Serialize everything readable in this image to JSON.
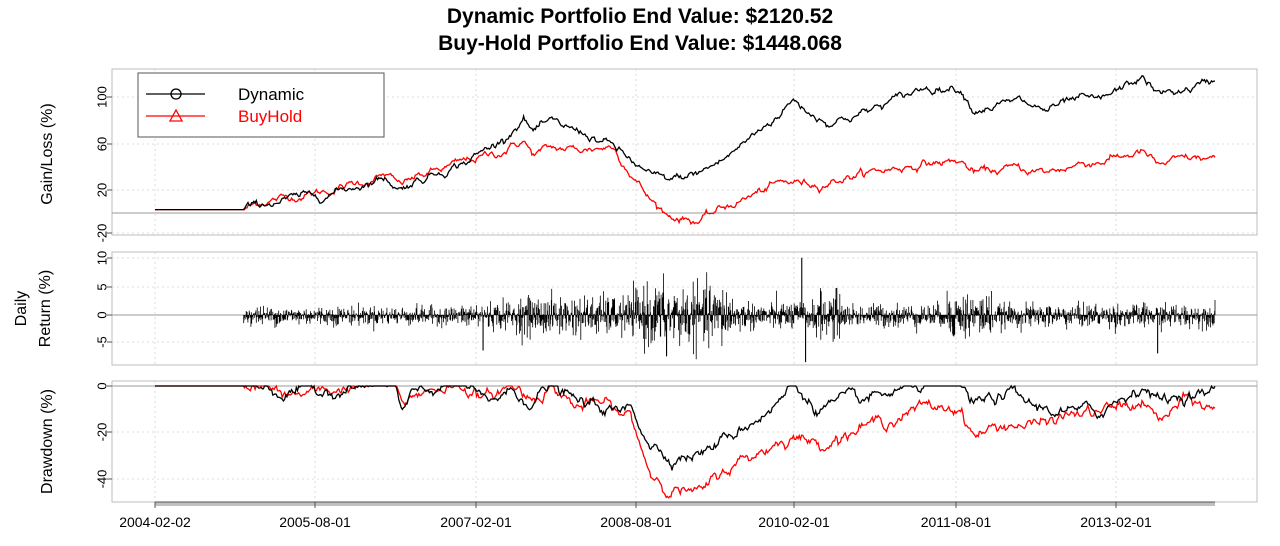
{
  "titles": {
    "line1": "Dynamic Portfolio End Value: $2120.52",
    "line2": "Buy-Hold Portfolio End Value: $1448.068"
  },
  "colors": {
    "dynamic": "#000000",
    "buyhold": "#ff0000",
    "grid": "#d3d3d3",
    "frame": "#bebebe"
  },
  "x_axis": {
    "ticks": [
      "2004-02-02",
      "2005-08-01",
      "2007-02-01",
      "2008-08-01",
      "2010-02-01",
      "2011-08-01",
      "2013-02-01"
    ]
  },
  "chart_data": [
    {
      "type": "line",
      "panel": "gain",
      "ylabel": "Gain/Loss (%)",
      "yticks": [
        "100",
        "60",
        "20",
        "-20"
      ],
      "ylim": [
        -22,
        122
      ],
      "legend": {
        "position": "top-left",
        "entries": [
          "Dynamic",
          "BuyHold"
        ]
      },
      "x": [
        "2004-02-02",
        "2004-12-01",
        "2005-02-01",
        "2005-06-01",
        "2005-10-01",
        "2006-04-01",
        "2006-05-15",
        "2006-07-01",
        "2007-01-01",
        "2007-05-01",
        "2007-07-15",
        "2007-08-15",
        "2007-10-15",
        "2008-02-01",
        "2008-05-15",
        "2008-09-15",
        "2008-11-20",
        "2009-03-09",
        "2009-06-01",
        "2009-12-01",
        "2010-01-20",
        "2010-04-15",
        "2010-06-01",
        "2010-10-01",
        "2011-04-15",
        "2011-08-15",
        "2011-10-01",
        "2012-03-01",
        "2012-06-01",
        "2012-10-01",
        "2012-12-01",
        "2013-05-01",
        "2013-06-20",
        "2013-10-01",
        "2014-01-02"
      ],
      "series": [
        {
          "name": "Dynamic",
          "values": [
            0,
            0,
            5,
            10,
            15,
            28,
            18,
            24,
            42,
            60,
            80,
            68,
            75,
            67,
            55,
            30,
            25,
            32,
            44,
            82,
            95,
            80,
            76,
            85,
            106,
            106,
            87,
            94,
            86,
            96,
            94,
            115,
            100,
            104,
            112
          ]
        },
        {
          "name": "BuyHold",
          "values": [
            0,
            0,
            7,
            12,
            17,
            30,
            21,
            27,
            42,
            50,
            60,
            48,
            53,
            52,
            55,
            10,
            -5,
            -10,
            2,
            22,
            24,
            22,
            25,
            32,
            40,
            42,
            32,
            36,
            32,
            40,
            42,
            50,
            38,
            44,
            44
          ]
        }
      ]
    },
    {
      "type": "line",
      "panel": "daily_return",
      "ylabel_lines": [
        "Daily",
        "Return (%)"
      ],
      "yticks": [
        "10",
        "5",
        "0",
        "-5"
      ],
      "ylim": [
        -8.5,
        11
      ],
      "x_start": "2004-12-01",
      "x_end": "2014-01-02",
      "series": [
        {
          "name": "Dynamic",
          "volatility_profile": [
            {
              "from": "2004-12-01",
              "to": "2007-01-01",
              "sd": 0.8
            },
            {
              "from": "2007-01-01",
              "to": "2007-07-01",
              "sd": 1.2
            },
            {
              "from": "2007-07-01",
              "to": "2008-08-01",
              "sd": 1.7
            },
            {
              "from": "2008-08-01",
              "to": "2009-07-01",
              "sd": 2.6
            },
            {
              "from": "2009-07-01",
              "to": "2010-04-01",
              "sd": 1.2
            },
            {
              "from": "2010-04-01",
              "to": "2010-07-01",
              "sd": 2.0
            },
            {
              "from": "2010-07-01",
              "to": "2011-07-01",
              "sd": 1.0
            },
            {
              "from": "2011-07-01",
              "to": "2011-12-01",
              "sd": 2.0
            },
            {
              "from": "2011-12-01",
              "to": "2014-01-02",
              "sd": 1.0
            }
          ],
          "spikes": [
            {
              "x": "2010-02-20",
              "value": 10
            },
            {
              "x": "2010-03-05",
              "value": -8
            },
            {
              "x": "2007-02-27",
              "value": -6
            },
            {
              "x": "2008-11-15",
              "value": -7
            },
            {
              "x": "2013-06-20",
              "value": -6.5
            }
          ]
        }
      ]
    },
    {
      "type": "line",
      "panel": "drawdown",
      "ylabel": "Drawdown (%)",
      "yticks": [
        "0",
        "-20",
        "-40"
      ],
      "ylim": [
        -51,
        1.5
      ],
      "x": [
        "2004-02-02",
        "2005-02-01",
        "2005-04-15",
        "2005-08-01",
        "2006-01-01",
        "2006-05-01",
        "2006-05-25",
        "2006-07-15",
        "2006-11-01",
        "2007-01-01",
        "2007-03-01",
        "2007-06-01",
        "2007-08-15",
        "2007-10-15",
        "2008-01-15",
        "2008-04-15",
        "2008-06-01",
        "2008-07-15",
        "2008-09-20",
        "2008-11-20",
        "2009-03-09",
        "2009-06-01",
        "2009-12-01",
        "2010-01-20",
        "2010-04-15",
        "2010-07-01",
        "2010-10-01",
        "2011-04-15",
        "2011-08-15",
        "2011-10-01",
        "2012-02-01",
        "2012-05-01",
        "2012-09-01",
        "2012-12-01",
        "2013-05-01",
        "2013-06-25",
        "2013-10-01",
        "2014-01-02"
      ],
      "series": [
        {
          "name": "Dynamic",
          "values": [
            0,
            0,
            -4,
            -3,
            -1,
            0,
            -13,
            -4,
            0,
            -1,
            -8,
            -3,
            -7,
            0,
            -8,
            -10,
            -13,
            -10,
            -25,
            -31,
            -30,
            -24,
            -8,
            0,
            -10,
            -8,
            -7,
            0,
            -1,
            -9,
            -4,
            -10,
            -12,
            -12,
            0,
            -7,
            -4,
            -4
          ]
        },
        {
          "name": "BuyHold",
          "values": [
            0,
            0,
            -5,
            -4,
            0,
            0,
            -10,
            -4,
            0,
            -1,
            -7,
            0,
            -6,
            0,
            -10,
            -8,
            -13,
            -14,
            -38,
            -44,
            -48,
            -37,
            -25,
            -22,
            -26,
            -22,
            -18,
            -10,
            -10,
            -22,
            -17,
            -18,
            -13,
            -12,
            -8,
            -16,
            -7,
            -11
          ]
        }
      ]
    }
  ]
}
